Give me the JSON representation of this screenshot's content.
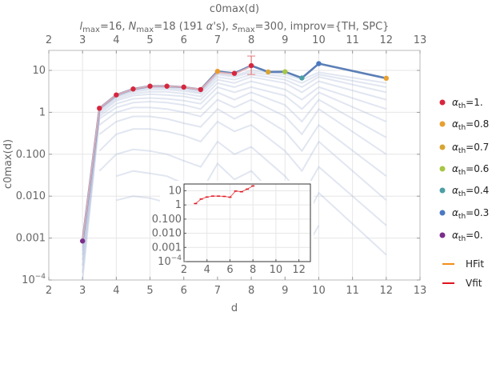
{
  "chart_data": {
    "type": "line",
    "title": "c0max(d)",
    "subtitle": "l_max=16, N_max=18 (191 α's), s_max=300, improv={TH, SPC}",
    "subtitle_parts": {
      "l_sym": "l",
      "l_sub": "max",
      "l_rest": "=16, ",
      "N_sym": "N",
      "N_sub": "max",
      "N_rest": "=18 (191 ",
      "alpha": "α",
      "alpha_rest": "'s), ",
      "s_sym": "s",
      "s_sub": "max",
      "s_rest": "=300, improv={TH, SPC}"
    },
    "xlabel": "d",
    "ylabel": "c0max(d)",
    "xlim": [
      2,
      13
    ],
    "ylim": [
      0.0001,
      30
    ],
    "yscale": "log",
    "x_ticks": [
      2,
      3,
      4,
      5,
      6,
      7,
      8,
      9,
      10,
      11,
      12,
      13
    ],
    "x_tick_labels": [
      "2",
      "3",
      "4",
      "5",
      "6",
      "7",
      "8",
      "9",
      "10",
      "11",
      "12",
      "13"
    ],
    "y_ticks": [
      {
        "v": 0.0001,
        "base": "10",
        "exp": "−4",
        "text": ""
      },
      {
        "v": 0.001,
        "text": "0.001"
      },
      {
        "v": 0.01,
        "text": "0.010"
      },
      {
        "v": 0.1,
        "text": "0.100"
      },
      {
        "v": 1,
        "text": "1"
      },
      {
        "v": 10,
        "text": "10"
      }
    ],
    "grid": true,
    "legend_placement": "right",
    "main_series": {
      "x": [
        3,
        3.5,
        4,
        4.5,
        5,
        5.5,
        6,
        6.5,
        7,
        7.5,
        8,
        8.5,
        9,
        9.5,
        10,
        12
      ],
      "y": [
        0.00085,
        1.25,
        2.6,
        3.6,
        4.2,
        4.2,
        4.0,
        3.5,
        9.5,
        8.5,
        13,
        9.2,
        9.3,
        6.6,
        14.5,
        6.5
      ],
      "color": "#5b7fb7"
    },
    "vfit_series": {
      "x": [
        3,
        3.5,
        4,
        4.5,
        5,
        5.5,
        6,
        6.5,
        7,
        7.5,
        8
      ],
      "y": [
        0.00085,
        1.25,
        2.6,
        3.6,
        4.2,
        4.2,
        4.0,
        3.5,
        9.0,
        8.2,
        12.5
      ],
      "color": "#e8b4b8"
    },
    "points": [
      {
        "x": 3,
        "y": 0.00085,
        "color": "#7b2d8b"
      },
      {
        "x": 3.5,
        "y": 1.25,
        "color": "#d7263d"
      },
      {
        "x": 4,
        "y": 2.6,
        "color": "#d7263d"
      },
      {
        "x": 4.5,
        "y": 3.6,
        "color": "#d7263d"
      },
      {
        "x": 5,
        "y": 4.2,
        "color": "#d7263d"
      },
      {
        "x": 5.5,
        "y": 4.2,
        "color": "#d7263d"
      },
      {
        "x": 6,
        "y": 4.0,
        "color": "#d7263d"
      },
      {
        "x": 6.5,
        "y": 3.5,
        "color": "#d7263d"
      },
      {
        "x": 7,
        "y": 9.5,
        "color": "#e89c2f"
      },
      {
        "x": 7.5,
        "y": 8.5,
        "color": "#d7263d"
      },
      {
        "x": 8,
        "y": 13,
        "color": "#d7263d"
      },
      {
        "x": 8.5,
        "y": 9.2,
        "color": "#d8a534"
      },
      {
        "x": 9,
        "y": 9.3,
        "color": "#a8c545"
      },
      {
        "x": 9.5,
        "y": 6.6,
        "color": "#4c9ea6"
      },
      {
        "x": 10,
        "y": 14.5,
        "color": "#4a78c2"
      },
      {
        "x": 12,
        "y": 6.5,
        "color": "#e8a032"
      }
    ],
    "error_bar": {
      "x": 8,
      "y_low": 8,
      "y_high": 22,
      "color": "#e37b7b"
    },
    "faint_series": [
      {
        "x": [
          3,
          3.5,
          4,
          4.5,
          5,
          5.5,
          6,
          6.5,
          7,
          7.5,
          8,
          9,
          9.5,
          10,
          12
        ],
        "y": [
          0.0006,
          1.2,
          2.5,
          3.5,
          4.0,
          4.0,
          3.8,
          3.2,
          8.5,
          7.5,
          10,
          8,
          6,
          9,
          5
        ]
      },
      {
        "x": [
          3,
          3.5,
          4,
          4.5,
          5,
          5.5,
          6,
          6.5,
          7,
          7.5,
          8,
          9,
          9.5,
          10,
          12
        ],
        "y": [
          0.0005,
          1.15,
          2.4,
          3.3,
          3.8,
          3.8,
          3.5,
          3.0,
          8,
          7,
          9,
          7,
          5,
          8,
          4
        ]
      },
      {
        "x": [
          3,
          3.5,
          4,
          4.5,
          5,
          5.5,
          6,
          6.5,
          7,
          7.5,
          8,
          9,
          9.5,
          10,
          12
        ],
        "y": [
          0.0004,
          1.1,
          2.3,
          3.1,
          3.5,
          3.5,
          3.2,
          2.8,
          7,
          6,
          8,
          6,
          4,
          7,
          3
        ]
      },
      {
        "x": [
          3,
          3.5,
          4,
          4.5,
          5,
          5.5,
          6,
          6.5,
          7,
          7.5,
          8,
          9,
          9.5,
          10,
          12
        ],
        "y": [
          0.0003,
          1.0,
          2.1,
          2.8,
          3.1,
          3.1,
          2.8,
          2.4,
          6,
          5,
          7,
          5,
          3,
          5.5,
          2
        ]
      },
      {
        "x": [
          3,
          3.5,
          4,
          4.5,
          5,
          5.5,
          6,
          6.5,
          7,
          7.5,
          8,
          9,
          9.5,
          10,
          12
        ],
        "y": [
          0.00022,
          0.9,
          1.9,
          2.5,
          2.7,
          2.6,
          2.4,
          2.0,
          5,
          4,
          5.5,
          3.5,
          2,
          4,
          1.2
        ]
      },
      {
        "x": [
          3,
          3.5,
          4,
          4.5,
          5,
          5.5,
          6,
          6.5,
          7,
          7.5,
          8,
          9,
          9.5,
          10,
          12
        ],
        "y": [
          0.00015,
          0.8,
          1.6,
          2.1,
          2.2,
          2.1,
          1.9,
          1.6,
          4,
          3,
          4,
          2.5,
          1.2,
          3,
          0.6
        ]
      },
      {
        "x": [
          3,
          3.5,
          4,
          4.5,
          5,
          5.5,
          6,
          6.5,
          7,
          7.5,
          8,
          9,
          9.5,
          10,
          12
        ],
        "y": [
          0.0001,
          0.7,
          1.3,
          1.7,
          1.8,
          1.7,
          1.5,
          1.2,
          3,
          2,
          3,
          1.5,
          0.6,
          2,
          0.25
        ]
      },
      {
        "x": [
          3.5,
          4,
          4.5,
          5,
          5.5,
          6,
          6.5,
          7,
          7.5,
          8,
          9,
          9.5,
          10,
          12
        ],
        "y": [
          0.5,
          1.0,
          1.3,
          1.3,
          1.2,
          1.0,
          0.8,
          2,
          1.3,
          2,
          0.8,
          0.3,
          1.2,
          0.1
        ]
      },
      {
        "x": [
          3.5,
          4,
          4.5,
          5,
          5.5,
          6,
          6.5,
          7,
          7.5,
          8,
          9,
          9.5,
          10,
          12
        ],
        "y": [
          0.3,
          0.6,
          0.8,
          0.8,
          0.7,
          0.55,
          0.45,
          1.2,
          0.7,
          1.1,
          0.35,
          0.12,
          0.5,
          0.03
        ]
      },
      {
        "x": [
          3.5,
          4,
          4.5,
          5,
          5.5,
          6,
          6.5,
          7,
          7.5,
          8,
          9,
          9.5,
          10,
          12
        ],
        "y": [
          0.12,
          0.3,
          0.4,
          0.4,
          0.35,
          0.28,
          0.2,
          0.6,
          0.35,
          0.5,
          0.12,
          0.04,
          0.2,
          0.008
        ]
      },
      {
        "x": [
          3.5,
          4,
          4.5,
          5,
          5.5,
          6,
          6.5,
          7,
          7.5,
          8,
          9,
          9.5,
          10,
          12
        ],
        "y": [
          0.04,
          0.1,
          0.13,
          0.12,
          0.1,
          0.07,
          0.05,
          0.2,
          0.1,
          0.15,
          0.03,
          0.01,
          0.05,
          0.002
        ]
      },
      {
        "x": [
          4,
          4.5,
          5,
          5.5,
          6,
          6.5,
          7,
          7.5,
          8,
          9,
          9.5,
          10,
          12
        ],
        "y": [
          0.03,
          0.04,
          0.035,
          0.03,
          0.02,
          0.012,
          0.06,
          0.025,
          0.04,
          0.006,
          0.002,
          0.012,
          0.0004
        ]
      },
      {
        "x": [
          4,
          4.5,
          5,
          5.5,
          6,
          6.5,
          7,
          7.5,
          8,
          9,
          9.5,
          10
        ],
        "y": [
          0.008,
          0.01,
          0.009,
          0.007,
          0.005,
          0.003,
          0.015,
          0.006,
          0.009,
          0.0012,
          0.0004,
          0.002
        ]
      }
    ],
    "legend": [
      {
        "label_sym": "α",
        "label_sub": "th",
        "label_rest": "=1.",
        "color": "#d7263d",
        "kind": "point"
      },
      {
        "label_sym": "α",
        "label_sub": "th",
        "label_rest": "=0.8",
        "color": "#e8a032",
        "kind": "point"
      },
      {
        "label_sym": "α",
        "label_sub": "th",
        "label_rest": "=0.7",
        "color": "#d8a534",
        "kind": "point"
      },
      {
        "label_sym": "α",
        "label_sub": "th",
        "label_rest": "=0.6",
        "color": "#a8c545",
        "kind": "point"
      },
      {
        "label_sym": "α",
        "label_sub": "th",
        "label_rest": "=0.4",
        "color": "#4c9ea6",
        "kind": "point"
      },
      {
        "label_sym": "α",
        "label_sub": "th",
        "label_rest": "=0.3",
        "color": "#4a78c2",
        "kind": "point"
      },
      {
        "label_sym": "α",
        "label_sub": "th",
        "label_rest": "=0.",
        "color": "#7b2d8b",
        "kind": "point"
      },
      {
        "label_sym": "",
        "label_sub": "",
        "label_rest": "HFit",
        "color": "#f28e1c",
        "kind": "line"
      },
      {
        "label_sym": "",
        "label_sub": "",
        "label_rest": "Vfit",
        "color": "#e0141e",
        "kind": "line"
      }
    ],
    "inset": {
      "xlim": [
        2,
        13
      ],
      "ylim": [
        0.0001,
        30
      ],
      "x_ticks": [
        2,
        4,
        6,
        8,
        10,
        12
      ],
      "x_tick_labels": [
        "2",
        "4",
        "6",
        "8",
        "10",
        "12"
      ],
      "y_ticks": [
        {
          "v": 0.0001,
          "base": "10",
          "exp": "−4",
          "text": ""
        },
        {
          "v": 0.001,
          "text": "0.001"
        },
        {
          "v": 0.01,
          "text": "0.010"
        },
        {
          "v": 0.1,
          "text": "0.100"
        },
        {
          "v": 1,
          "text": "1"
        },
        {
          "v": 10,
          "text": "10"
        }
      ],
      "x": [
        3,
        3.5,
        4,
        4.5,
        5,
        5.5,
        6,
        6.5,
        7,
        7.5,
        8
      ],
      "y": [
        1.25,
        2.6,
        3.6,
        4.2,
        4.2,
        4.0,
        3.5,
        9.5,
        8.5,
        13,
        22
      ],
      "color": "#e0141e"
    }
  }
}
